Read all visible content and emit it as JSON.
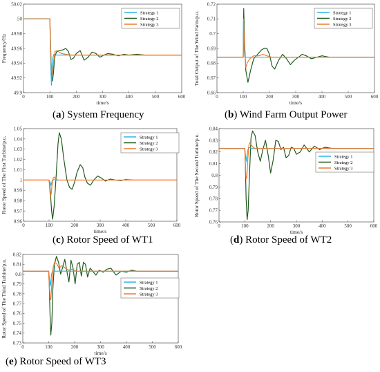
{
  "chart_data": [
    {
      "type": "line",
      "caption_letter": "a",
      "caption_text": "System Frequency",
      "xlabel": "time/s",
      "ylabel": "Frequency/Hz",
      "xlim": [
        0,
        600
      ],
      "ylim": [
        49.9,
        50.02
      ],
      "xticks": [
        "0",
        "100",
        "200",
        "300",
        "400",
        "500",
        "600"
      ],
      "yticks": [
        "49.9",
        "49.92",
        "49.94",
        "49.96",
        "49.98",
        "50",
        "50.02"
      ],
      "legend_position": "top-right",
      "series": [
        {
          "name": "Strategy 1",
          "color": "#29b6e6",
          "x": [
            0,
            100,
            102,
            104,
            106,
            108,
            110,
            115,
            125,
            140,
            160,
            180,
            200,
            220,
            240,
            260,
            300,
            400,
            500,
            600
          ],
          "y": [
            50,
            50,
            49.96,
            49.93,
            49.91,
            49.92,
            49.945,
            49.952,
            49.951,
            49.951,
            49.951,
            49.951,
            49.951,
            49.951,
            49.951,
            49.951,
            49.951,
            49.951,
            49.951,
            49.951
          ]
        },
        {
          "name": "Strategy 2",
          "color": "#1e5a1e",
          "x": [
            0,
            100,
            103,
            106,
            110,
            114,
            118,
            125,
            135,
            150,
            160,
            170,
            180,
            190,
            200,
            215,
            230,
            245,
            260,
            275,
            290,
            305,
            320,
            340,
            360,
            380,
            400,
            430,
            460,
            500,
            600
          ],
          "y": [
            50,
            50,
            49.96,
            49.925,
            49.916,
            49.928,
            49.948,
            49.955,
            49.957,
            49.958,
            49.96,
            49.956,
            49.945,
            49.947,
            49.953,
            49.957,
            49.944,
            49.948,
            49.955,
            49.953,
            49.948,
            49.951,
            49.953,
            49.952,
            49.95,
            49.952,
            49.951,
            49.952,
            49.951,
            49.951,
            49.951
          ]
        },
        {
          "name": "Strategy 3",
          "color": "#f07a2a",
          "x": [
            0,
            100,
            103,
            106,
            110,
            115,
            120,
            128,
            135,
            145,
            160,
            180,
            200,
            230,
            260,
            300,
            400,
            600
          ],
          "y": [
            50,
            50,
            49.96,
            49.93,
            49.925,
            49.945,
            49.956,
            49.957,
            49.955,
            49.953,
            49.952,
            49.951,
            49.951,
            49.951,
            49.951,
            49.951,
            49.951,
            49.951
          ]
        }
      ]
    },
    {
      "type": "line",
      "caption_letter": "b",
      "caption_text": "Wind Farm Output Power",
      "xlabel": "time/s",
      "ylabel": "Total Output of The Wind Farm/p.u.",
      "xlim": [
        0,
        600
      ],
      "ylim": [
        0.66,
        0.72
      ],
      "xticks": [
        "0",
        "100",
        "200",
        "300",
        "400",
        "500",
        "600"
      ],
      "yticks": [
        "0.66",
        "0.67",
        "0.68",
        "0.69",
        "0.7",
        "0.71",
        "0.72"
      ],
      "legend_position": "top-right",
      "series": [
        {
          "name": "Strategy 1",
          "color": "#29b6e6",
          "x": [
            0,
            100,
            101,
            103,
            106,
            110,
            600
          ],
          "y": [
            0.684,
            0.684,
            0.71,
            0.69,
            0.684,
            0.684,
            0.684
          ]
        },
        {
          "name": "Strategy 2",
          "color": "#1e5a1e",
          "x": [
            0,
            100,
            102,
            105,
            110,
            118,
            128,
            140,
            155,
            170,
            180,
            190,
            200,
            210,
            220,
            235,
            250,
            265,
            280,
            295,
            310,
            325,
            340,
            360,
            380,
            400,
            430,
            460,
            500,
            600
          ],
          "y": [
            0.684,
            0.684,
            0.717,
            0.695,
            0.675,
            0.667,
            0.675,
            0.683,
            0.686,
            0.689,
            0.69,
            0.69,
            0.686,
            0.678,
            0.676,
            0.682,
            0.686,
            0.683,
            0.679,
            0.682,
            0.684,
            0.686,
            0.685,
            0.683,
            0.684,
            0.685,
            0.684,
            0.684,
            0.684,
            0.684
          ]
        },
        {
          "name": "Strategy 3",
          "color": "#f07a2a",
          "x": [
            0,
            100,
            102,
            105,
            110,
            115,
            125,
            140,
            160,
            175,
            190,
            210,
            240,
            300,
            600
          ],
          "y": [
            0.684,
            0.684,
            0.706,
            0.69,
            0.677,
            0.68,
            0.683,
            0.685,
            0.685,
            0.686,
            0.685,
            0.684,
            0.684,
            0.684,
            0.684
          ]
        }
      ]
    },
    {
      "type": "line",
      "caption_letter": "c",
      "caption_text": "Rotor Speed of WT1",
      "xlabel": "time/s",
      "ylabel": "Rotor Speed of The First Turbine/p.u.",
      "xlim": [
        0,
        600
      ],
      "ylim": [
        0.96,
        1.05
      ],
      "xticks": [
        "0",
        "100",
        "200",
        "300",
        "400",
        "500",
        "600"
      ],
      "yticks": [
        "0.96",
        "0.97",
        "0.98",
        "0.99",
        "1",
        "1.01",
        "1.02",
        "1.03",
        "1.04",
        "1.05"
      ],
      "legend_position": "top-right",
      "series": [
        {
          "name": "Strategy 1",
          "color": "#29b6e6",
          "x": [
            0,
            100,
            104,
            108,
            112,
            118,
            125,
            600
          ],
          "y": [
            1,
            1,
            0.998,
            0.995,
            0.999,
            1.0005,
            1.0,
            1.0
          ]
        },
        {
          "name": "Strategy 2",
          "color": "#1e5a1e",
          "x": [
            0,
            100,
            103,
            106,
            110,
            114,
            120,
            128,
            135,
            140,
            148,
            158,
            170,
            180,
            190,
            200,
            210,
            222,
            232,
            240,
            250,
            262,
            275,
            290,
            305,
            320,
            340,
            360,
            380,
            400,
            430,
            460,
            500,
            600
          ],
          "y": [
            1,
            1,
            0.995,
            0.985,
            0.97,
            0.962,
            0.975,
            1.005,
            1.035,
            1.046,
            1.04,
            1.02,
            1.0,
            0.993,
            0.991,
            0.998,
            1.008,
            1.015,
            1.012,
            1.003,
            0.997,
            0.995,
            1.0,
            1.004,
            1.002,
            0.999,
            1.001,
            1.0,
            0.9995,
            1.0005,
            1.0,
            1.0,
            1.0,
            1.0
          ]
        },
        {
          "name": "Strategy 3",
          "color": "#f07a2a",
          "x": [
            0,
            100,
            102,
            105,
            108,
            112,
            116,
            120,
            126,
            135,
            145,
            160,
            600
          ],
          "y": [
            1,
            1,
            0.993,
            0.984,
            0.986,
            0.996,
            1.002,
            1.003,
            1.001,
            1.0,
            1.0,
            1.0,
            1.0
          ]
        }
      ]
    },
    {
      "type": "line",
      "caption_letter": "d",
      "caption_text": "Rotor Speed of WT2",
      "xlabel": "time/s",
      "ylabel": "Rotor Speed of The Second Turbine/p.u.",
      "xlim": [
        0,
        600
      ],
      "ylim": [
        0.76,
        0.84
      ],
      "xticks": [
        "0",
        "100",
        "200",
        "300",
        "400",
        "500",
        "600"
      ],
      "yticks": [
        "0.76",
        "0.77",
        "0.78",
        "0.79",
        "0.8",
        "0.81",
        "0.82",
        "0.83",
        "0.84"
      ],
      "legend_position": "middle-right",
      "series": [
        {
          "name": "Strategy 1",
          "color": "#29b6e6",
          "x": [
            0,
            100,
            102,
            106,
            110,
            115,
            125,
            600
          ],
          "y": [
            0.823,
            0.823,
            0.818,
            0.812,
            0.82,
            0.824,
            0.823,
            0.823
          ]
        },
        {
          "name": "Strategy 2",
          "color": "#1e5a1e",
          "x": [
            0,
            100,
            102,
            105,
            109,
            113,
            118,
            124,
            130,
            140,
            150,
            160,
            170,
            180,
            190,
            200,
            210,
            220,
            230,
            240,
            250,
            260,
            270,
            280,
            290,
            300,
            315,
            330,
            350,
            370,
            390,
            410,
            440,
            480,
            520,
            600
          ],
          "y": [
            0.823,
            0.823,
            0.81,
            0.78,
            0.762,
            0.77,
            0.8,
            0.832,
            0.838,
            0.834,
            0.82,
            0.812,
            0.822,
            0.83,
            0.818,
            0.802,
            0.813,
            0.83,
            0.829,
            0.822,
            0.824,
            0.815,
            0.817,
            0.824,
            0.823,
            0.818,
            0.82,
            0.826,
            0.82,
            0.825,
            0.822,
            0.824,
            0.823,
            0.823,
            0.823,
            0.823
          ]
        },
        {
          "name": "Strategy 3",
          "color": "#f07a2a",
          "x": [
            0,
            100,
            102,
            105,
            108,
            112,
            116,
            120,
            125,
            132,
            140,
            150,
            160,
            600
          ],
          "y": [
            0.823,
            0.823,
            0.81,
            0.797,
            0.798,
            0.815,
            0.826,
            0.828,
            0.826,
            0.824,
            0.823,
            0.823,
            0.823,
            0.823
          ]
        }
      ]
    },
    {
      "type": "line",
      "caption_letter": "e",
      "caption_text": "Rotor Speed of WT3",
      "xlabel": "time/s",
      "ylabel": "Rotor Speed of The Third Turbine/p.u.",
      "xlim": [
        0,
        600
      ],
      "ylim": [
        0.73,
        0.82
      ],
      "xticks": [
        "0",
        "100",
        "200",
        "300",
        "400",
        "500",
        "600"
      ],
      "yticks": [
        "0.73",
        "0.74",
        "0.75",
        "0.76",
        "0.77",
        "0.78",
        "0.79",
        "0.8",
        "0.81",
        "0.82"
      ],
      "legend_position": "middle-right",
      "series": [
        {
          "name": "Strategy 1",
          "color": "#29b6e6",
          "x": [
            0,
            100,
            103,
            107,
            111,
            116,
            125,
            600
          ],
          "y": [
            0.803,
            0.803,
            0.795,
            0.788,
            0.8,
            0.804,
            0.803,
            0.803
          ]
        },
        {
          "name": "Strategy 2",
          "color": "#1e5a1e",
          "x": [
            0,
            100,
            102,
            105,
            108,
            112,
            116,
            122,
            130,
            138,
            146,
            155,
            162,
            170,
            178,
            186,
            194,
            202,
            210,
            218,
            226,
            234,
            242,
            250,
            260,
            270,
            282,
            295,
            310,
            325,
            340,
            360,
            380,
            400,
            420,
            440,
            460,
            490,
            520,
            600
          ],
          "y": [
            0.803,
            0.803,
            0.79,
            0.76,
            0.738,
            0.75,
            0.785,
            0.81,
            0.818,
            0.812,
            0.8,
            0.808,
            0.815,
            0.803,
            0.792,
            0.814,
            0.806,
            0.79,
            0.81,
            0.812,
            0.798,
            0.812,
            0.81,
            0.797,
            0.806,
            0.803,
            0.799,
            0.804,
            0.802,
            0.805,
            0.806,
            0.799,
            0.803,
            0.802,
            0.804,
            0.803,
            0.803,
            0.803,
            0.803,
            0.803
          ]
        },
        {
          "name": "Strategy 3",
          "color": "#f07a2a",
          "x": [
            0,
            100,
            102,
            105,
            108,
            112,
            116,
            122,
            130,
            140,
            152,
            164,
            176,
            190,
            210,
            240,
            600
          ],
          "y": [
            0.803,
            0.803,
            0.79,
            0.776,
            0.774,
            0.79,
            0.805,
            0.812,
            0.811,
            0.806,
            0.809,
            0.806,
            0.804,
            0.805,
            0.803,
            0.803,
            0.803
          ]
        }
      ]
    }
  ]
}
